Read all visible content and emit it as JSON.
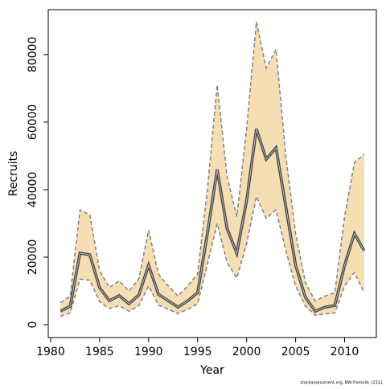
{
  "chart_data": {
    "type": "band-line",
    "x_label": "Year",
    "y_label": "Recruits",
    "footnote": "stockassessment.org, BW-fromold, r2311",
    "x": [
      1981,
      1982,
      1983,
      1984,
      1985,
      1986,
      1987,
      1988,
      1989,
      1990,
      1991,
      1992,
      1993,
      1994,
      1995,
      1996,
      1997,
      1998,
      1999,
      2000,
      2001,
      2002,
      2003,
      2004,
      2005,
      2006,
      2007,
      2008,
      2009,
      2010,
      2011,
      2012
    ],
    "values": [
      4000,
      5500,
      21200,
      20700,
      11000,
      7100,
      8600,
      6200,
      8800,
      17600,
      9000,
      7100,
      5200,
      7100,
      9500,
      27000,
      46000,
      28500,
      21200,
      36700,
      58000,
      49000,
      52400,
      35000,
      17600,
      8100,
      4000,
      5200,
      5700,
      17600,
      27000,
      21900
    ],
    "upper": [
      6500,
      8500,
      34000,
      32500,
      16000,
      11000,
      13000,
      10000,
      13500,
      28000,
      15000,
      11500,
      8500,
      11500,
      15000,
      40000,
      71000,
      44000,
      32000,
      58000,
      89700,
      76000,
      81500,
      50000,
      27000,
      12500,
      7000,
      8500,
      9500,
      32000,
      48000,
      50500
    ],
    "lower": [
      2500,
      3500,
      13500,
      13200,
      6800,
      4800,
      5600,
      4000,
      5600,
      11500,
      5800,
      4600,
      3300,
      4600,
      6200,
      18000,
      30000,
      18500,
      13800,
      24000,
      38000,
      31500,
      34000,
      22000,
      11500,
      5500,
      2800,
      3200,
      3500,
      11500,
      15500,
      9500
    ],
    "band_color": "#f5deb3",
    "line_color": "#404040",
    "bound_color": "#808080",
    "xlim": [
      1979.76,
      2013.24
    ],
    "ylim": [
      -3800,
      93300
    ],
    "xticks": [
      1980,
      1985,
      1990,
      1995,
      2000,
      2005,
      2010
    ],
    "yticks": [
      0,
      20000,
      40000,
      60000,
      80000
    ]
  }
}
